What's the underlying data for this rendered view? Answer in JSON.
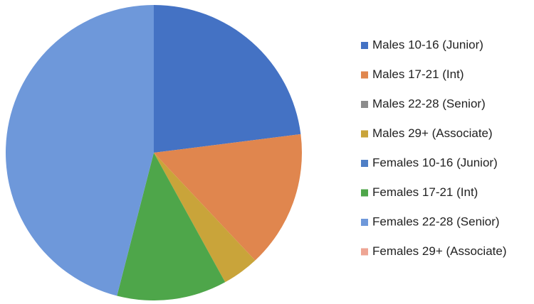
{
  "chart_data": {
    "type": "pie",
    "categories": [
      "Males 10-16 (Junior)",
      "Males 17-21 (Int)",
      "Males 22-28 (Senior)",
      "Males 29+ (Associate)",
      "Females 10-16 (Junior)",
      "Females 17-21 (Int)",
      "Females 22-28 (Senior)",
      "Females 29+ (Associate)"
    ],
    "values": [
      23,
      15,
      0,
      4,
      0,
      12,
      46,
      0
    ],
    "colors": [
      "#4472c4",
      "#e0864e",
      "#8c8c8c",
      "#c9a43a",
      "#4f7fc6",
      "#4ea64a",
      "#6e98da",
      "#eea594"
    ],
    "legend": "right"
  }
}
